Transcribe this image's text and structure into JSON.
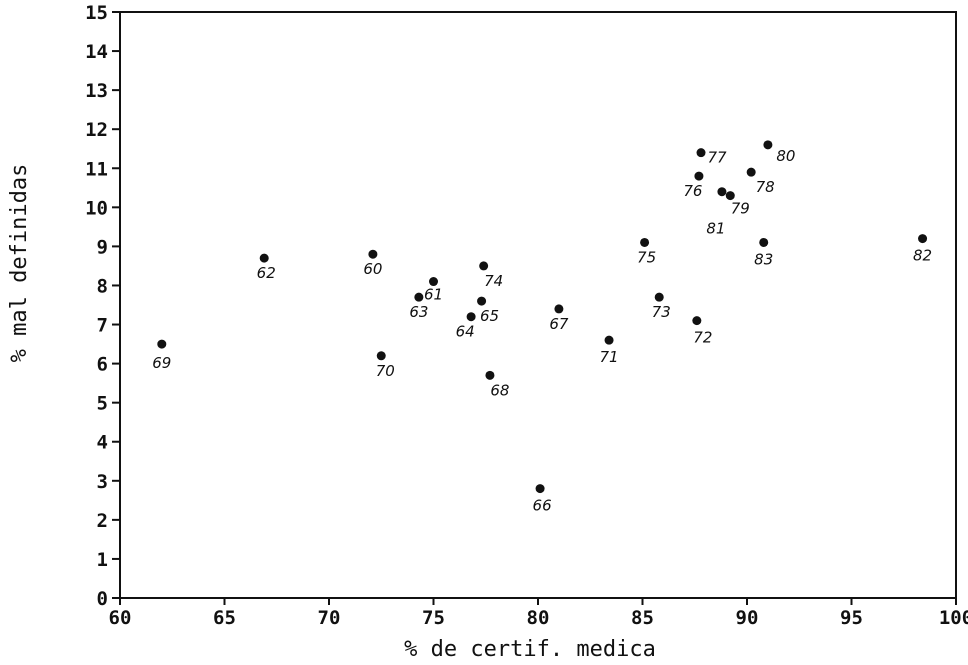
{
  "chart_data": {
    "type": "scatter",
    "title": "",
    "xlabel": "% de certif. medica",
    "ylabel": "% mal definidas",
    "xlim": [
      60,
      100
    ],
    "ylim": [
      0,
      15
    ],
    "xticks": [
      "60",
      "65",
      "70",
      "75",
      "80",
      "85",
      "90",
      "95",
      "100"
    ],
    "yticks": [
      "0",
      "1",
      "2",
      "3",
      "4",
      "5",
      "6",
      "7",
      "8",
      "9",
      "10",
      "11",
      "12",
      "13",
      "14",
      "15"
    ],
    "grid": false,
    "points": [
      {
        "label": "60",
        "x": 72.1,
        "y": 8.8
      },
      {
        "label": "61",
        "x": 75.0,
        "y": 8.1
      },
      {
        "label": "62",
        "x": 66.9,
        "y": 8.7
      },
      {
        "label": "63",
        "x": 74.3,
        "y": 7.7
      },
      {
        "label": "64",
        "x": 76.8,
        "y": 7.2
      },
      {
        "label": "65",
        "x": 77.3,
        "y": 7.6
      },
      {
        "label": "66",
        "x": 80.1,
        "y": 2.8
      },
      {
        "label": "67",
        "x": 81.0,
        "y": 7.4
      },
      {
        "label": "68",
        "x": 77.7,
        "y": 5.7
      },
      {
        "label": "69",
        "x": 62.0,
        "y": 6.5
      },
      {
        "label": "70",
        "x": 72.5,
        "y": 6.2
      },
      {
        "label": "71",
        "x": 83.4,
        "y": 6.6
      },
      {
        "label": "72",
        "x": 87.6,
        "y": 7.1
      },
      {
        "label": "73",
        "x": 85.8,
        "y": 7.7
      },
      {
        "label": "74",
        "x": 77.4,
        "y": 8.5
      },
      {
        "label": "75",
        "x": 85.1,
        "y": 9.1
      },
      {
        "label": "76",
        "x": 87.7,
        "y": 10.8
      },
      {
        "label": "77",
        "x": 87.8,
        "y": 11.4
      },
      {
        "label": "78",
        "x": 90.2,
        "y": 10.9
      },
      {
        "label": "79",
        "x": 89.2,
        "y": 10.3
      },
      {
        "label": "80",
        "x": 91.0,
        "y": 11.6
      },
      {
        "label": "81",
        "x": 88.8,
        "y": 10.4
      },
      {
        "label": "82",
        "x": 98.4,
        "y": 9.2
      },
      {
        "label": "83",
        "x": 90.8,
        "y": 9.1
      }
    ]
  }
}
